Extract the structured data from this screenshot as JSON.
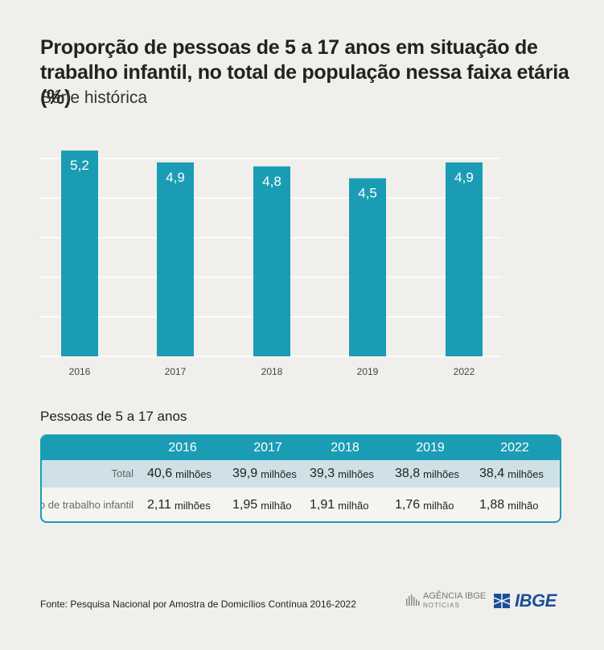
{
  "title": "Proporção de pessoas de 5 a 17 anos em situação de trabalho infantil, no total de população nessa faixa etária (%)",
  "subtitle": "Série histórica",
  "chart_data": {
    "type": "bar",
    "categories": [
      "2016",
      "2017",
      "2018",
      "2019",
      "2022"
    ],
    "values": [
      5.2,
      4.9,
      4.8,
      4.5,
      4.9
    ],
    "value_labels": [
      "5,2",
      "4,9",
      "4,8",
      "4,5",
      "4,9"
    ],
    "title": "Proporção de pessoas de 5 a 17 anos em situação de trabalho infantil, no total de população nessa faixa etária (%)",
    "subtitle": "Série histórica",
    "xlabel": "",
    "ylabel": "",
    "ylim": [
      0,
      5
    ],
    "grid": true,
    "color": "#1a9db4"
  },
  "table": {
    "caption": "Pessoas de 5 a 17 anos",
    "years": [
      "2016",
      "2017",
      "2018",
      "2019",
      "2022"
    ],
    "rows": [
      {
        "label": "Total",
        "values": [
          "40,6",
          "39,9",
          "39,3",
          "38,8",
          "38,4"
        ],
        "units": [
          "milhões",
          "milhões",
          "milhões",
          "milhões",
          "milhões"
        ]
      },
      {
        "label": "Em situação de trabalho infantil",
        "values": [
          "2,11",
          "1,95",
          "1,91",
          "1,76",
          "1,88"
        ],
        "units": [
          "milhões",
          "milhão",
          "milhão",
          "milhão",
          "milhão"
        ]
      }
    ]
  },
  "source": "Fonte: Pesquisa Nacional por Amostra de Domicílios Contínua 2016-2022",
  "logos": {
    "agencia_main": "AGÊNCIA IBGE",
    "agencia_sub": "NOTÍCIAS",
    "ibge": "IBGE",
    "colors": {
      "ibge_blue": "#1d4f99",
      "gray": "#777777"
    }
  }
}
